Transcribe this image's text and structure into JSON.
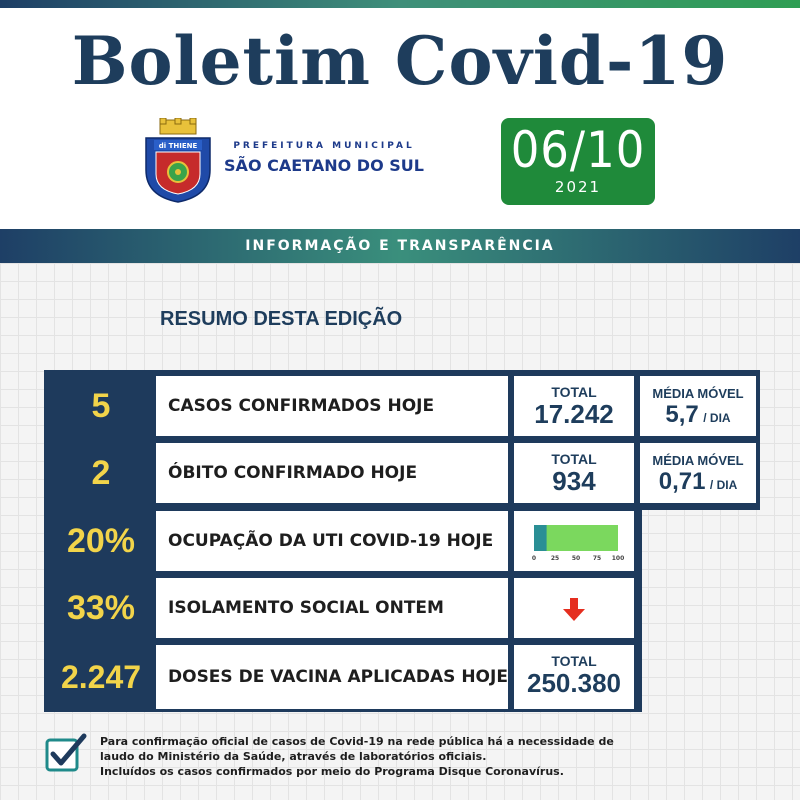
{
  "header": {
    "title": "Boletim Covid-19",
    "prefeitura_line1": "PREFEITURA MUNICIPAL",
    "prefeitura_line2": "SÃO CAETANO DO SUL",
    "crest_text": "di THIENE",
    "date": "06/10",
    "year": "2021"
  },
  "banner": "INFORMAÇÃO E TRANSPARÊNCIA",
  "section_title": "RESUMO DESTA EDIÇÃO",
  "rows": [
    {
      "value": "5",
      "label": "CASOS CONFIRMADOS HOJE",
      "total_label": "TOTAL",
      "total": "17.242",
      "mm_label": "MÉDIA MÓVEL",
      "mm_value": "5,7",
      "mm_unit": "/ DIA"
    },
    {
      "value": "2",
      "label": "ÓBITO CONFIRMADO HOJE",
      "total_label": "TOTAL",
      "total": "934",
      "mm_label": "MÉDIA MÓVEL",
      "mm_value": "0,71",
      "mm_unit": "/ DIA"
    },
    {
      "value": "20%",
      "label": "OCUPAÇÃO DA UTI COVID-19 HOJE"
    },
    {
      "value": "33%",
      "label": "ISOLAMENTO SOCIAL ONTEM"
    },
    {
      "value": "2.247",
      "label": "DOSES DE VACINA APLICADAS HOJE",
      "total_label": "TOTAL",
      "total": "250.380"
    }
  ],
  "uti_gauge": {
    "value_percent": 20,
    "ticks": [
      "0",
      "25",
      "50",
      "75",
      "100"
    ],
    "filled_color": "#2a8f95",
    "remaining_color": "#7bd85e"
  },
  "isolation_trend": "down-arrow-icon",
  "footnote": {
    "line1": "Para confirmação oficial de casos de Covid-19 na rede pública há a necessidade de",
    "line2": "laudo do Ministério da Saúde, através de laboratórios oficiais.",
    "line3": "Incluídos os casos confirmados por meio do Programa Disque Coronavírus."
  },
  "colors": {
    "navy": "#1e3a5c",
    "yellow": "#f2d44a",
    "green": "#1f8a3a",
    "arrow_red": "#e52e1f"
  }
}
